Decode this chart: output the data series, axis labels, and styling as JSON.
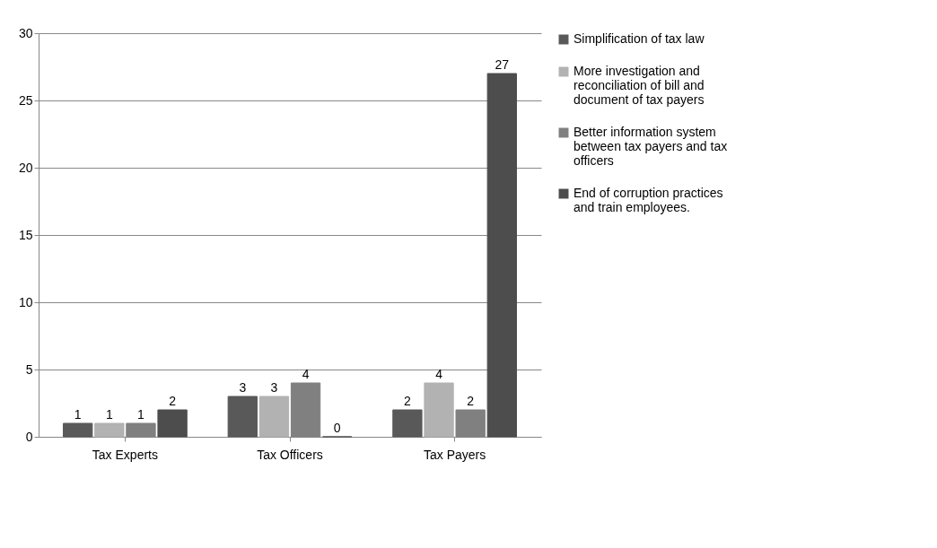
{
  "chart_data": {
    "type": "bar",
    "categories": [
      "Tax Experts",
      "Tax Officers",
      "Tax Payers"
    ],
    "series": [
      {
        "name": "Simplification of tax law",
        "color": "#595959",
        "values": [
          1,
          3,
          2
        ]
      },
      {
        "name": "More investigation and reconciliation of bill and document of tax payers",
        "color": "#b2b2b2",
        "values": [
          1,
          3,
          4
        ]
      },
      {
        "name": "Better information system between tax payers and tax officers",
        "color": "#808080",
        "values": [
          1,
          4,
          2
        ]
      },
      {
        "name": "End of corruption practices and train employees.",
        "color": "#4d4d4d",
        "values": [
          2,
          0,
          27
        ]
      }
    ],
    "ylim": [
      0,
      30
    ],
    "yticks": [
      0,
      5,
      10,
      15,
      20,
      25,
      30
    ],
    "grid": "y",
    "legend": "right",
    "data_labels": true
  }
}
